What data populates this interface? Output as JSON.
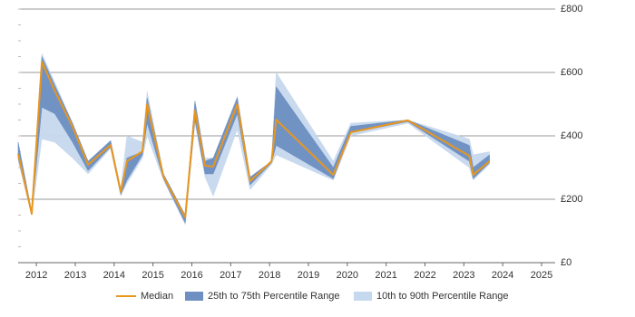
{
  "chart_data": {
    "type": "line",
    "x": [
      2011.53,
      2011.88,
      2012.14,
      2012.47,
      2012.93,
      2013.33,
      2013.91,
      2014.17,
      2014.33,
      2014.73,
      2014.85,
      2015.27,
      2015.83,
      2016.08,
      2016.34,
      2016.55,
      2017.17,
      2017.5,
      2018.05,
      2018.17,
      2019.64,
      2020.09,
      2021.56,
      2023.14,
      2023.24,
      2023.66
    ],
    "series": [
      {
        "name": "Median",
        "color": "#e8961e",
        "values": [
          343,
          154,
          634,
          543,
          429,
          309,
          371,
          223,
          320,
          351,
          500,
          271,
          143,
          480,
          306,
          303,
          500,
          257,
          320,
          451,
          277,
          411,
          449,
          337,
          277,
          320
        ]
      }
    ],
    "bands": [
      {
        "name": "10th to 90th Percentile Range",
        "color": "#c6d8ee",
        "lower": [
          320,
          150,
          390,
          380,
          330,
          280,
          360,
          210,
          250,
          330,
          400,
          260,
          120,
          440,
          270,
          210,
          420,
          230,
          310,
          340,
          260,
          400,
          440,
          300,
          260,
          310
        ],
        "upper": [
          380,
          160,
          660,
          570,
          440,
          320,
          385,
          235,
          400,
          380,
          540,
          280,
          150,
          510,
          330,
          330,
          525,
          270,
          320,
          600,
          320,
          440,
          450,
          390,
          340,
          350
        ]
      },
      {
        "name": "25th to 75th Percentile Range",
        "color": "#6d8fc1",
        "lower": [
          330,
          154,
          490,
          470,
          380,
          290,
          365,
          215,
          260,
          340,
          440,
          265,
          125,
          450,
          280,
          280,
          470,
          245,
          315,
          370,
          265,
          410,
          445,
          320,
          265,
          315
        ],
        "upper": [
          380,
          160,
          650,
          560,
          440,
          320,
          385,
          230,
          330,
          350,
          520,
          280,
          150,
          510,
          320,
          330,
          520,
          270,
          320,
          555,
          300,
          430,
          450,
          370,
          300,
          340
        ]
      }
    ],
    "xlim": [
      2011.53,
      2025.35
    ],
    "xticks": [
      2012,
      2013,
      2014,
      2015,
      2016,
      2017,
      2018,
      2019,
      2020,
      2021,
      2022,
      2023,
      2024,
      2025
    ],
    "ylim": [
      0,
      800
    ],
    "yticks": [
      {
        "value": 0,
        "label": "£0"
      },
      {
        "value": 200,
        "label": "£200"
      },
      {
        "value": 400,
        "label": "£400"
      },
      {
        "value": 600,
        "label": "£600"
      },
      {
        "value": 800,
        "label": "£800"
      }
    ],
    "grid": true
  }
}
